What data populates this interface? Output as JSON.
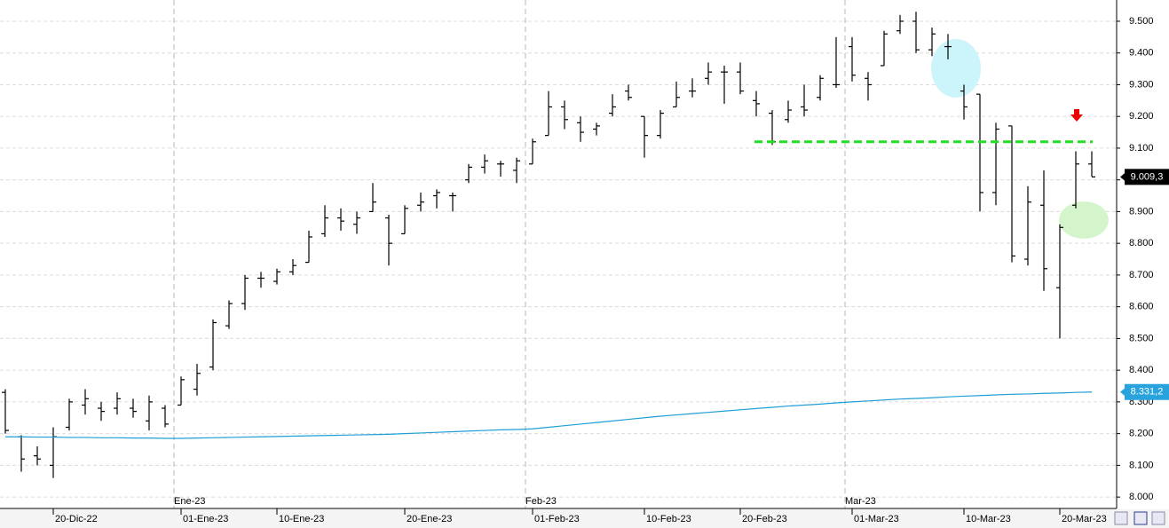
{
  "chart_data": {
    "type": "ohlc",
    "categories": [
      null,
      null,
      null,
      "20-Dic-22",
      null,
      null,
      null,
      null,
      null,
      null,
      null,
      "01-Ene-23",
      null,
      null,
      null,
      null,
      null,
      "10-Ene-23",
      null,
      null,
      null,
      null,
      null,
      null,
      null,
      "20-Ene-23",
      null,
      null,
      null,
      null,
      null,
      null,
      null,
      "01-Feb-23",
      null,
      null,
      null,
      null,
      null,
      null,
      "10-Feb-23",
      null,
      null,
      null,
      null,
      null,
      "20-Feb-23",
      null,
      null,
      null,
      null,
      null,
      null,
      "01-Mar-23",
      null,
      null,
      null,
      null,
      null,
      null,
      "10-Mar-23",
      null,
      null,
      null,
      null,
      null,
      "20-Mar-23",
      null,
      null
    ],
    "month_categories": [
      null,
      null,
      null,
      null,
      null,
      null,
      null,
      null,
      null,
      null,
      null,
      "Ene-23",
      null,
      null,
      null,
      null,
      null,
      null,
      null,
      null,
      null,
      null,
      null,
      null,
      null,
      null,
      null,
      null,
      null,
      null,
      null,
      null,
      null,
      "Feb-23",
      null,
      null,
      null,
      null,
      null,
      null,
      null,
      null,
      null,
      null,
      null,
      null,
      null,
      null,
      null,
      null,
      null,
      null,
      null,
      "Mar-23",
      null,
      null,
      null,
      null,
      null,
      null,
      null,
      null,
      null,
      null,
      null,
      null,
      null,
      null,
      null
    ],
    "color": "#000000",
    "open": [
      8330,
      8190,
      8130,
      8100,
      8220,
      8290,
      8280,
      8280,
      8280,
      8240,
      8280,
      8290,
      8340,
      8410,
      8540,
      8610,
      8690,
      8680,
      8710,
      8740,
      8830,
      8880,
      8860,
      8900,
      8880,
      8830,
      8920,
      8950,
      8950,
      9000,
      9040,
      9050,
      9030,
      9050,
      9140,
      9230,
      9180,
      9160,
      9210,
      9280,
      9200,
      9140,
      9230,
      9280,
      9320,
      9340,
      9340,
      9250,
      9210,
      9190,
      9230,
      9260,
      9300,
      9420,
      9320,
      9360,
      9470,
      9500,
      9410,
      9420,
      9280,
      9270,
      8960,
      9170,
      8750,
      8920,
      8660,
      8920,
      9050
    ],
    "high": [
      8340,
      8195,
      8160,
      8220,
      8310,
      8340,
      8300,
      8330,
      8310,
      8320,
      8290,
      8380,
      8420,
      8560,
      8620,
      8700,
      8710,
      8720,
      8750,
      8840,
      8920,
      8910,
      8900,
      8990,
      8890,
      8920,
      8960,
      8970,
      8960,
      9050,
      9080,
      9060,
      9070,
      9130,
      9280,
      9250,
      9200,
      9180,
      9270,
      9300,
      9200,
      9220,
      9310,
      9320,
      9370,
      9360,
      9370,
      9280,
      9220,
      9250,
      9300,
      9330,
      9450,
      9450,
      9340,
      9470,
      9520,
      9530,
      9480,
      9460,
      9300,
      9270,
      9180,
      9170,
      8980,
      9030,
      8860,
      9090,
      9090
    ],
    "low": [
      8200,
      8080,
      8100,
      8060,
      8210,
      8260,
      8240,
      8260,
      8250,
      8210,
      8220,
      8290,
      8320,
      8400,
      8530,
      8590,
      8660,
      8670,
      8700,
      8740,
      8820,
      8840,
      8830,
      8900,
      8730,
      8830,
      8900,
      8910,
      8900,
      8990,
      9020,
      9010,
      8990,
      9050,
      9140,
      9160,
      9120,
      9140,
      9200,
      9250,
      9070,
      9130,
      9230,
      9260,
      9300,
      9240,
      9270,
      9200,
      9110,
      9180,
      9200,
      9250,
      9290,
      9310,
      9250,
      9360,
      9460,
      9400,
      9390,
      9380,
      9190,
      8900,
      8920,
      8740,
      8730,
      8650,
      8500,
      8910,
      9010
    ],
    "close": [
      8210,
      8120,
      8120,
      8190,
      8300,
      8310,
      8270,
      8310,
      8270,
      8300,
      8230,
      8370,
      8390,
      8550,
      8610,
      8690,
      8690,
      8710,
      8730,
      8820,
      8880,
      8870,
      8880,
      8930,
      8800,
      8910,
      8930,
      8960,
      8950,
      9040,
      9060,
      9050,
      9060,
      9120,
      9230,
      9190,
      9150,
      9170,
      9230,
      9260,
      9140,
      9210,
      9260,
      9280,
      9340,
      9340,
      9280,
      9240,
      9120,
      9220,
      9220,
      9320,
      9300,
      9330,
      9300,
      9460,
      9500,
      9410,
      9460,
      9420,
      9230,
      8960,
      9160,
      8760,
      8930,
      8720,
      8850,
      9050,
      9009.3
    ],
    "ma": {
      "color": "#1e9fd6",
      "values": [
        8190,
        8190,
        8189,
        8189,
        8188,
        8188,
        8187,
        8187,
        8186,
        8186,
        8185,
        8185,
        8186,
        8187,
        8188,
        8189,
        8190,
        8191,
        8192,
        8193,
        8194,
        8195,
        8196,
        8197,
        8198,
        8200,
        8202,
        8204,
        8206,
        8208,
        8210,
        8212,
        8213,
        8215,
        8220,
        8225,
        8230,
        8235,
        8240,
        8245,
        8250,
        8255,
        8259,
        8263,
        8267,
        8271,
        8275,
        8279,
        8283,
        8287,
        8290,
        8293,
        8297,
        8300,
        8303,
        8306,
        8309,
        8311,
        8313,
        8316,
        8318,
        8320,
        8322,
        8324,
        8325,
        8327,
        8328,
        8330,
        8331.2
      ]
    },
    "hline": {
      "value": 9120,
      "color": "#22dd22"
    },
    "price_marker": {
      "value": 9009.3,
      "label": "9.009,3",
      "color": "#000000"
    },
    "ma_marker": {
      "value": 8331.2,
      "label": "8.331,2",
      "color": "#29a3dd"
    },
    "ylim": [
      7964,
      9567
    ],
    "yticks": [
      {
        "value": 8000,
        "label": "8.000"
      },
      {
        "value": 8100,
        "label": "8.100"
      },
      {
        "value": 8200,
        "label": "8.200"
      },
      {
        "value": 8300,
        "label": "8.300"
      },
      {
        "value": 8400,
        "label": "8.400"
      },
      {
        "value": 8500,
        "label": "8.500"
      },
      {
        "value": 8600,
        "label": "8.600"
      },
      {
        "value": 8700,
        "label": "8.700"
      },
      {
        "value": 8800,
        "label": "8.800"
      },
      {
        "value": 8900,
        "label": "8.900"
      },
      {
        "value": 9000,
        "label": "9.000"
      },
      {
        "value": 9100,
        "label": "9.100"
      },
      {
        "value": 9200,
        "label": "9.200"
      },
      {
        "value": 9300,
        "label": "9.300"
      },
      {
        "value": 9400,
        "label": "9.400"
      },
      {
        "value": 9500,
        "label": "9.500"
      }
    ],
    "grid": true
  }
}
